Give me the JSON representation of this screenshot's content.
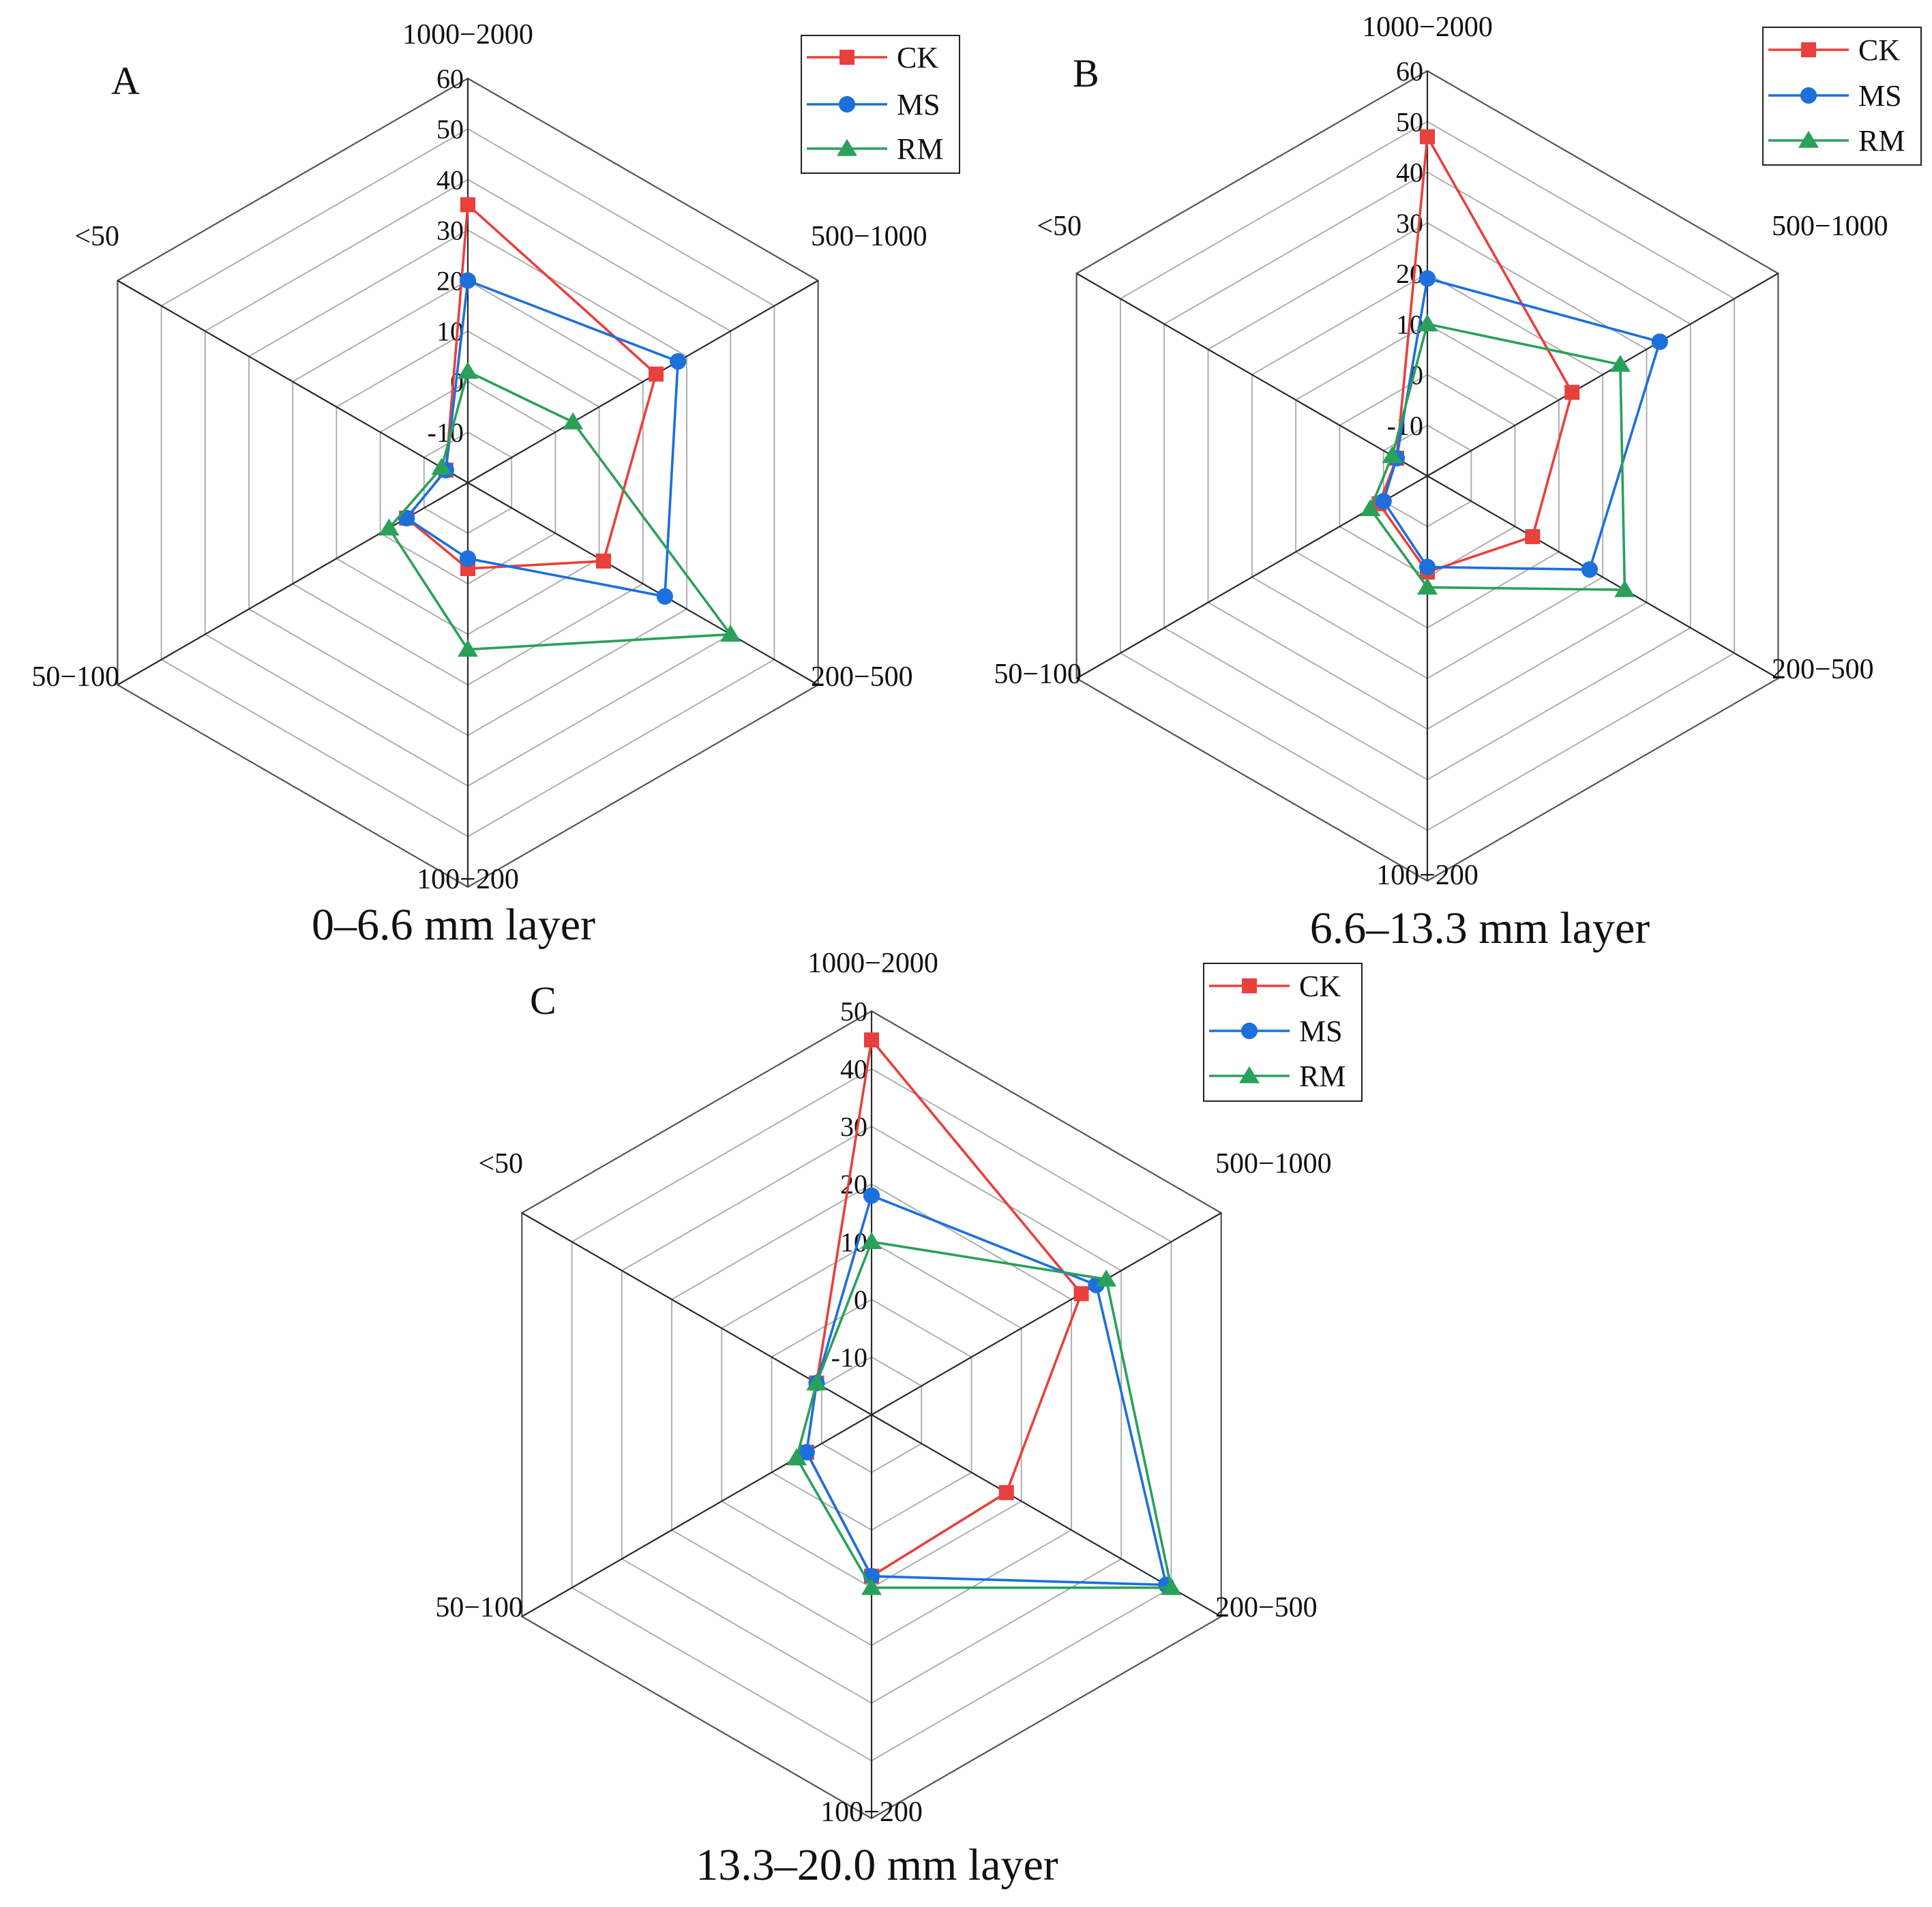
{
  "figure": {
    "series_styles": [
      {
        "name": "CK",
        "color": "#e8403d",
        "marker": "square"
      },
      {
        "name": "MS",
        "color": "#1d6fdc",
        "marker": "circle"
      },
      {
        "name": "RM",
        "color": "#2aa05a",
        "marker": "triangle"
      }
    ]
  },
  "chart_data": [
    {
      "type": "radar",
      "panel": "A",
      "caption": "0–6.6 mm layer",
      "categories": [
        "1000−2000",
        "500−1000",
        "200−500",
        "100−200",
        "50−100",
        "<50"
      ],
      "ticks": [
        "60",
        "50",
        "40",
        "30",
        "20",
        "10",
        "0",
        "-10"
      ],
      "rlim": [
        -20,
        60
      ],
      "legend": [
        "CK",
        "MS",
        "RM"
      ],
      "series": [
        {
          "name": "CK",
          "values": [
            35,
            23,
            11,
            -3,
            -6,
            -15
          ]
        },
        {
          "name": "MS",
          "values": [
            20,
            28,
            25,
            -5,
            -6,
            -15
          ]
        },
        {
          "name": "RM",
          "values": [
            2,
            4,
            40,
            13,
            -2,
            -14
          ]
        }
      ]
    },
    {
      "type": "radar",
      "panel": "B",
      "caption": "6.6–13.3 mm layer",
      "categories": [
        "1000−2000",
        "500−1000",
        "200−500",
        "100−200",
        "50−100",
        "<50"
      ],
      "ticks": [
        "60",
        "50",
        "40",
        "30",
        "20",
        "10",
        "0",
        "-10"
      ],
      "rlim": [
        -20,
        60
      ],
      "legend": [
        "CK",
        "MS",
        "RM"
      ],
      "series": [
        {
          "name": "CK",
          "values": [
            47,
            13,
            4,
            -1,
            -9,
            -13
          ]
        },
        {
          "name": "MS",
          "values": [
            19,
            33,
            17,
            -2,
            -10,
            -13
          ]
        },
        {
          "name": "RM",
          "values": [
            10,
            24,
            25,
            2,
            -7,
            -12
          ]
        }
      ]
    },
    {
      "type": "radar",
      "panel": "C",
      "caption": "13.3–20.0 mm layer",
      "categories": [
        "1000−2000",
        "500−1000",
        "200−500",
        "100−200",
        "50−100",
        "<50"
      ],
      "ticks": [
        "50",
        "40",
        "30",
        "20",
        "10",
        "0",
        "-10"
      ],
      "rlim": [
        -20,
        50
      ],
      "legend": [
        "CK",
        "MS",
        "RM"
      ],
      "series": [
        {
          "name": "CK",
          "values": [
            45,
            22,
            7,
            8,
            -7,
            -9
          ]
        },
        {
          "name": "MS",
          "values": [
            18,
            25,
            39,
            8,
            -7,
            -9
          ]
        },
        {
          "name": "RM",
          "values": [
            10,
            27,
            40,
            10,
            -5,
            -9
          ]
        }
      ]
    }
  ]
}
